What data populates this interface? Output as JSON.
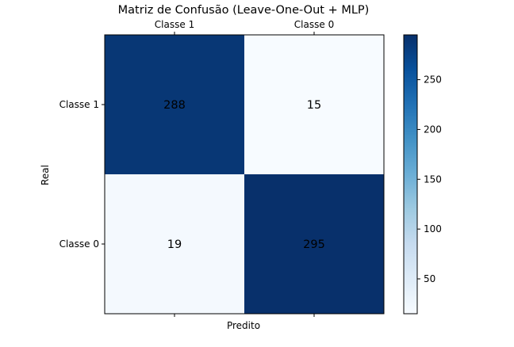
{
  "chart_data": {
    "type": "heatmap",
    "title": "Matriz de Confusão (Leave-One-Out + MLP)",
    "xlabel": "Predito",
    "ylabel": "Real",
    "x_categories": [
      "Classe 1",
      "Classe 0"
    ],
    "y_categories": [
      "Classe 1",
      "Classe 0"
    ],
    "matrix": [
      [
        288,
        15
      ],
      [
        19,
        295
      ]
    ],
    "value_range": [
      15,
      295
    ],
    "colormap": "Blues",
    "colorbar_ticks": [
      50,
      100,
      150,
      200,
      250
    ],
    "x_tick_position": "top",
    "grid": false,
    "colors": {
      "min": "#f7fbff",
      "max": "#08306b",
      "text_on_dark": "#000000"
    }
  }
}
